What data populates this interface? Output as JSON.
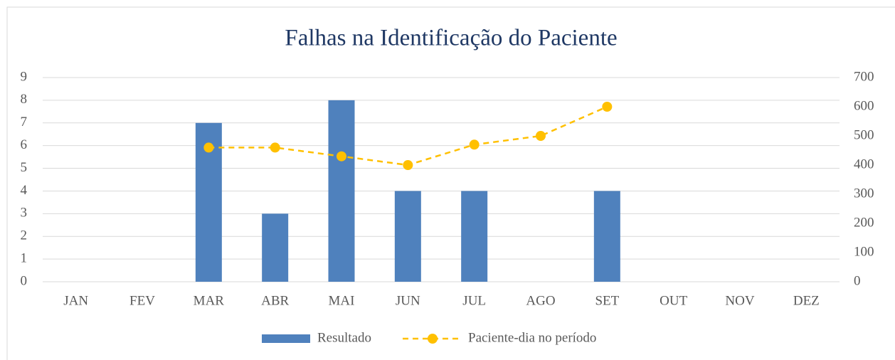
{
  "chart_data": {
    "type": "bar-line",
    "title": "Falhas na Identificação do Paciente",
    "categories": [
      "JAN",
      "FEV",
      "MAR",
      "ABR",
      "MAI",
      "JUN",
      "JUL",
      "AGO",
      "SET",
      "OUT",
      "NOV",
      "DEZ"
    ],
    "series": [
      {
        "name": "Resultado",
        "type": "bar",
        "color": "#4f81bd",
        "axis": "y",
        "values": [
          null,
          null,
          7,
          3,
          8,
          4,
          4,
          null,
          4,
          null,
          null,
          null
        ]
      },
      {
        "name": "Paciente-dia no período",
        "type": "line",
        "color": "#ffc000",
        "axis": "y2",
        "dashed": true,
        "marker": "circle",
        "values": [
          null,
          null,
          460,
          460,
          430,
          400,
          470,
          500,
          600,
          null,
          null,
          null
        ]
      }
    ],
    "ylim": [
      0,
      9
    ],
    "yticks": [
      0,
      1,
      2,
      3,
      4,
      5,
      6,
      7,
      8,
      9
    ],
    "y2lim": [
      0,
      700
    ],
    "y2ticks": [
      0,
      100,
      200,
      300,
      400,
      500,
      600,
      700
    ],
    "grid": true,
    "legend": "bottom"
  }
}
